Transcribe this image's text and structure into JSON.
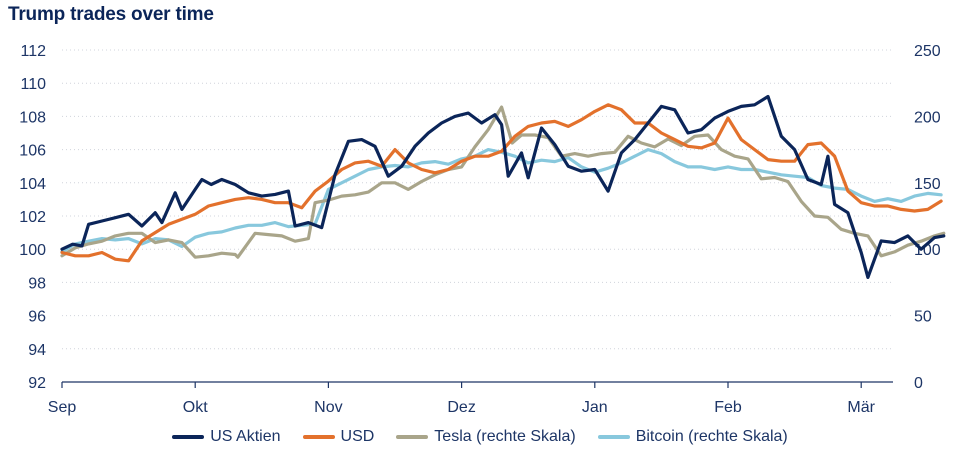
{
  "chart_data": {
    "type": "line",
    "title": "Trump trades over time",
    "x_labels": [
      "Sep",
      "Okt",
      "Nov",
      "Dez",
      "Jan",
      "Feb",
      "Mär"
    ],
    "x_range": [
      0,
      6.62
    ],
    "y_left": {
      "min": 92,
      "max": 112,
      "ticks": [
        92,
        94,
        96,
        98,
        100,
        102,
        104,
        106,
        108,
        110,
        112
      ]
    },
    "y_right": {
      "min": 0,
      "max": 250,
      "ticks": [
        0,
        50,
        100,
        150,
        200,
        250
      ]
    },
    "grid": "horizontal",
    "legend_position": "bottom",
    "series": [
      {
        "name": "US Aktien",
        "axis": "left",
        "color": "#0b2559",
        "x": [
          0,
          0.08,
          0.15,
          0.2,
          0.3,
          0.4,
          0.5,
          0.6,
          0.7,
          0.75,
          0.85,
          0.9,
          1.0,
          1.05,
          1.12,
          1.2,
          1.3,
          1.4,
          1.5,
          1.6,
          1.7,
          1.75,
          1.85,
          1.95,
          2.05,
          2.15,
          2.25,
          2.35,
          2.45,
          2.55,
          2.65,
          2.75,
          2.85,
          2.95,
          3.05,
          3.15,
          3.25,
          3.3,
          3.35,
          3.45,
          3.5,
          3.6,
          3.7,
          3.8,
          3.9,
          4.0,
          4.1,
          4.2,
          4.3,
          4.4,
          4.5,
          4.6,
          4.7,
          4.8,
          4.9,
          5.0,
          5.1,
          5.2,
          5.3,
          5.4,
          5.5,
          5.6,
          5.7,
          5.75,
          5.8,
          5.9,
          6.0,
          6.05,
          6.15,
          6.25,
          6.35,
          6.45,
          6.55,
          6.62
        ],
        "values": [
          100,
          100.3,
          100.2,
          101.5,
          101.7,
          101.9,
          102.1,
          101.4,
          102.2,
          101.6,
          103.4,
          102.4,
          103.6,
          104.2,
          103.9,
          104.2,
          103.9,
          103.4,
          103.2,
          103.3,
          103.5,
          101.4,
          101.6,
          101.3,
          104.5,
          106.5,
          106.6,
          106.2,
          104.4,
          105.0,
          106.2,
          107.0,
          107.6,
          108.0,
          108.2,
          107.6,
          108.1,
          107.5,
          104.4,
          105.8,
          104.3,
          107.3,
          106.3,
          105.0,
          104.7,
          104.8,
          103.5,
          105.8,
          106.6,
          107.6,
          108.6,
          108.4,
          107.0,
          107.2,
          107.9,
          108.3,
          108.6,
          108.7,
          109.2,
          106.8,
          106.0,
          104.2,
          103.9,
          105.6,
          102.7,
          102.2,
          99.8,
          98.3,
          100.5,
          100.4,
          100.8,
          100.0,
          100.7,
          100.8
        ]
      },
      {
        "name": "USD",
        "axis": "left",
        "color": "#e3712c",
        "x": [
          0,
          0.1,
          0.2,
          0.3,
          0.4,
          0.5,
          0.6,
          0.7,
          0.8,
          0.9,
          1.0,
          1.1,
          1.2,
          1.3,
          1.4,
          1.5,
          1.6,
          1.7,
          1.8,
          1.9,
          2.0,
          2.1,
          2.2,
          2.3,
          2.4,
          2.5,
          2.6,
          2.7,
          2.8,
          2.9,
          3.0,
          3.1,
          3.2,
          3.3,
          3.4,
          3.5,
          3.6,
          3.7,
          3.8,
          3.9,
          4.0,
          4.1,
          4.2,
          4.3,
          4.4,
          4.5,
          4.6,
          4.7,
          4.8,
          4.9,
          5.0,
          5.1,
          5.2,
          5.3,
          5.4,
          5.5,
          5.6,
          5.7,
          5.8,
          5.9,
          6.0,
          6.1,
          6.2,
          6.3,
          6.4,
          6.5,
          6.6
        ],
        "values": [
          99.8,
          99.6,
          99.6,
          99.8,
          99.4,
          99.3,
          100.5,
          101.0,
          101.5,
          101.8,
          102.1,
          102.6,
          102.8,
          103.0,
          103.1,
          103.0,
          102.8,
          102.8,
          102.5,
          103.5,
          104.1,
          104.8,
          105.2,
          105.3,
          105.0,
          106.0,
          105.2,
          104.8,
          104.6,
          104.8,
          105.3,
          105.6,
          105.6,
          105.9,
          106.8,
          107.4,
          107.6,
          107.7,
          107.4,
          107.8,
          108.3,
          108.7,
          108.4,
          107.6,
          107.6,
          107.0,
          106.6,
          106.2,
          106.1,
          106.4,
          107.9,
          106.6,
          106.0,
          105.4,
          105.3,
          105.3,
          106.3,
          106.4,
          105.6,
          103.5,
          102.8,
          102.6,
          102.6,
          102.4,
          102.3,
          102.4,
          102.9
        ]
      },
      {
        "name": "Tesla (rechte Skala)",
        "axis": "right",
        "color": "#a9a58a",
        "x": [
          0,
          0.1,
          0.2,
          0.3,
          0.4,
          0.5,
          0.6,
          0.7,
          0.8,
          0.9,
          1.0,
          1.1,
          1.2,
          1.3,
          1.32,
          1.45,
          1.55,
          1.65,
          1.75,
          1.8,
          1.85,
          1.9,
          2.0,
          2.1,
          2.2,
          2.3,
          2.4,
          2.5,
          2.6,
          2.7,
          2.8,
          2.9,
          3.0,
          3.1,
          3.2,
          3.3,
          3.38,
          3.45,
          3.55,
          3.65,
          3.75,
          3.85,
          3.95,
          4.05,
          4.15,
          4.25,
          4.35,
          4.45,
          4.55,
          4.65,
          4.75,
          4.85,
          4.95,
          5.05,
          5.15,
          5.25,
          5.35,
          5.45,
          5.55,
          5.65,
          5.75,
          5.85,
          5.95,
          6.05,
          6.15,
          6.25,
          6.35,
          6.45,
          6.55,
          6.62
        ],
        "values": [
          95,
          101,
          104,
          106,
          110,
          112,
          112,
          105,
          107,
          105,
          94,
          95,
          97,
          96,
          94,
          112,
          111,
          110,
          106,
          107,
          108,
          135,
          137,
          140,
          141,
          143,
          150,
          150,
          145,
          151,
          156,
          160,
          162,
          177,
          190,
          207,
          180,
          186,
          186,
          184,
          170,
          172,
          170,
          172,
          173,
          185,
          180,
          177,
          183,
          178,
          185,
          186,
          175,
          170,
          168,
          153,
          154,
          151,
          136,
          125,
          124,
          115,
          112,
          110,
          95,
          98,
          103,
          106,
          110,
          112
        ]
      },
      {
        "name": "Bitcoin (rechte Skala)",
        "axis": "right",
        "color": "#88c8dd",
        "x": [
          0,
          0.1,
          0.2,
          0.3,
          0.4,
          0.5,
          0.6,
          0.7,
          0.8,
          0.9,
          1.0,
          1.1,
          1.2,
          1.3,
          1.4,
          1.5,
          1.6,
          1.7,
          1.8,
          1.9,
          2.0,
          2.1,
          2.2,
          2.3,
          2.4,
          2.5,
          2.6,
          2.7,
          2.8,
          2.9,
          3.0,
          3.1,
          3.2,
          3.3,
          3.4,
          3.5,
          3.6,
          3.7,
          3.8,
          3.9,
          4.0,
          4.1,
          4.2,
          4.3,
          4.4,
          4.5,
          4.6,
          4.7,
          4.8,
          4.9,
          5.0,
          5.1,
          5.2,
          5.3,
          5.4,
          5.5,
          5.6,
          5.7,
          5.8,
          5.9,
          6.0,
          6.1,
          6.2,
          6.3,
          6.4,
          6.5,
          6.6
        ],
        "values": [
          98,
          104,
          106,
          108,
          107,
          108,
          104,
          108,
          107,
          102,
          109,
          112,
          113,
          116,
          118,
          118,
          120,
          117,
          118,
          119,
          145,
          150,
          155,
          160,
          162,
          163,
          162,
          165,
          166,
          164,
          168,
          170,
          175,
          173,
          170,
          165,
          167,
          166,
          169,
          162,
          158,
          161,
          165,
          170,
          175,
          172,
          166,
          162,
          162,
          160,
          162,
          160,
          160,
          158,
          156,
          155,
          154,
          148,
          146,
          145,
          140,
          136,
          138,
          136,
          140,
          142,
          141
        ]
      }
    ]
  }
}
